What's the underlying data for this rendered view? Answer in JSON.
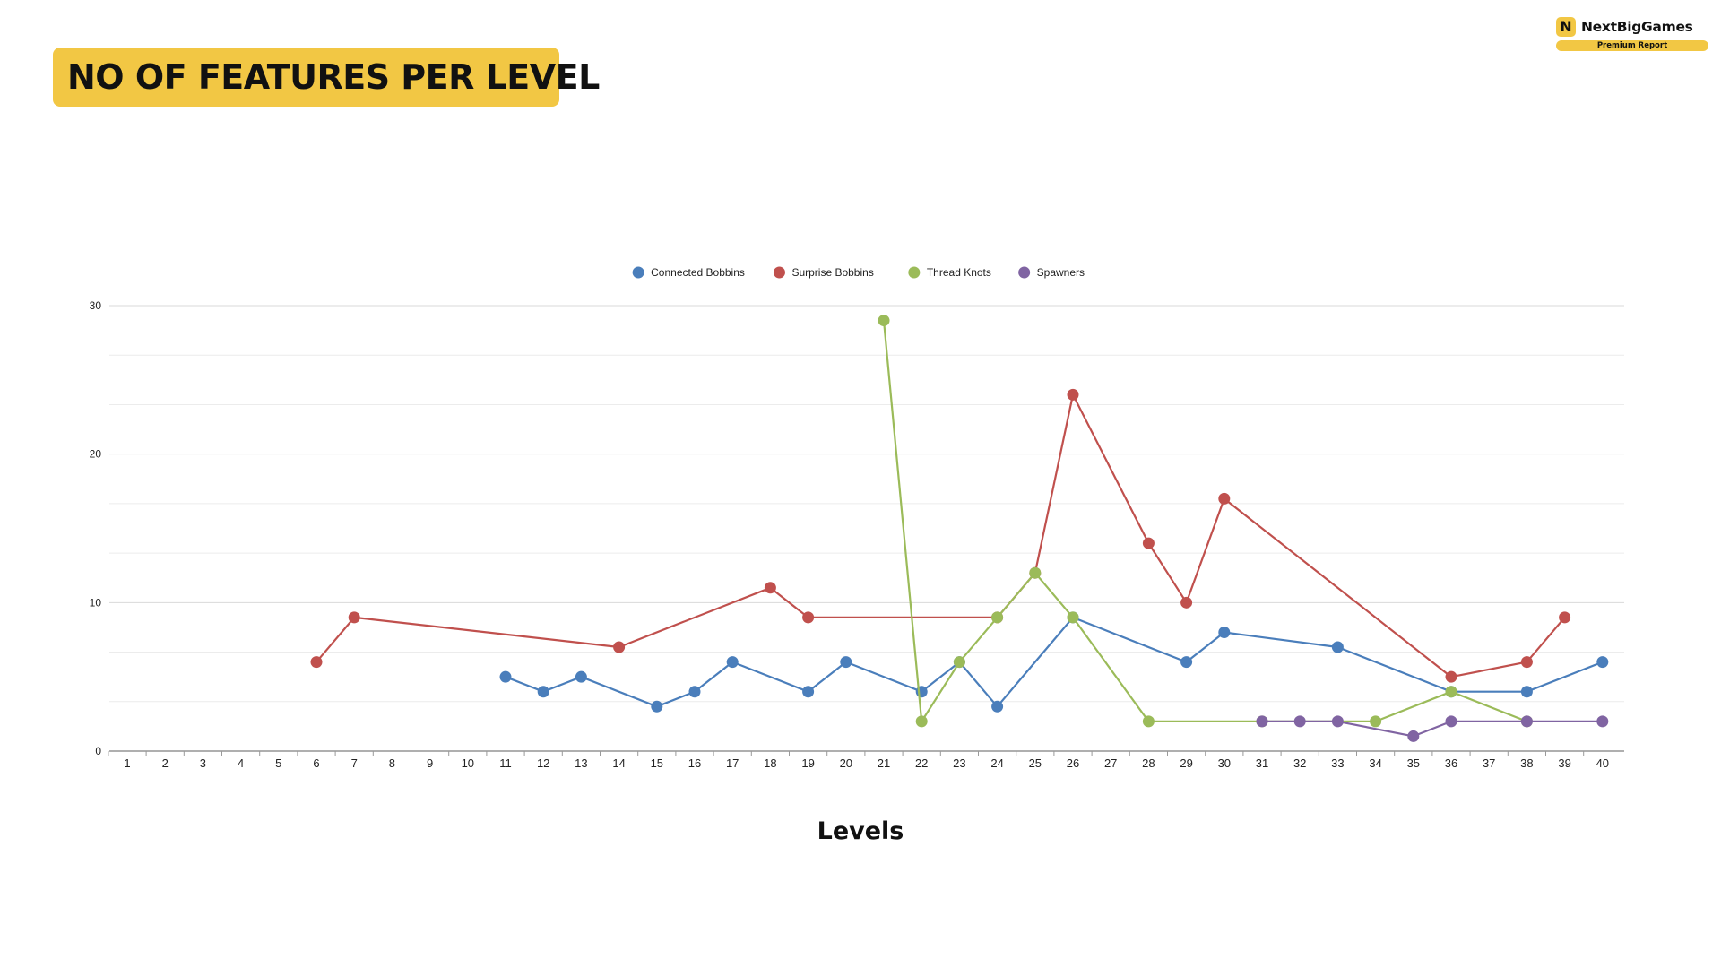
{
  "header": {
    "title": "NO OF FEATURES PER LEVEL"
  },
  "brand": {
    "name": "NextBigGames",
    "tagline": "Premium Report",
    "logo_letter": "N",
    "accent_color": "#f2c744"
  },
  "chart_data": {
    "type": "line",
    "xlabel": "Levels",
    "ylabel": "",
    "ylim": [
      0,
      30
    ],
    "yticks": [
      0,
      10,
      20,
      30
    ],
    "grid": true,
    "legend_position": "top-center",
    "categories": [
      "1",
      "2",
      "3",
      "4",
      "5",
      "6",
      "7",
      "8",
      "9",
      "10",
      "11",
      "12",
      "13",
      "14",
      "15",
      "16",
      "17",
      "18",
      "19",
      "20",
      "21",
      "22",
      "23",
      "24",
      "25",
      "26",
      "27",
      "28",
      "29",
      "30",
      "31",
      "32",
      "33",
      "34",
      "35",
      "36",
      "37",
      "38",
      "39",
      "40"
    ],
    "series": [
      {
        "name": "Connected Bobbins",
        "color": "#4a7ebb",
        "values": [
          null,
          null,
          null,
          null,
          null,
          null,
          null,
          null,
          null,
          null,
          5,
          4,
          5,
          null,
          3,
          4,
          6,
          null,
          4,
          6,
          null,
          4,
          6,
          3,
          null,
          9,
          null,
          null,
          6,
          8,
          null,
          null,
          7,
          null,
          null,
          4,
          null,
          4,
          null,
          6
        ]
      },
      {
        "name": "Surprise Bobbins",
        "color": "#c0504d",
        "values": [
          null,
          null,
          null,
          null,
          null,
          6,
          9,
          null,
          null,
          null,
          null,
          null,
          null,
          7,
          null,
          null,
          null,
          11,
          9,
          null,
          null,
          null,
          null,
          9,
          12,
          24,
          null,
          14,
          10,
          17,
          null,
          null,
          null,
          null,
          null,
          5,
          null,
          6,
          9,
          null
        ]
      },
      {
        "name": "Thread Knots",
        "color": "#9bbb59",
        "values": [
          null,
          null,
          null,
          null,
          null,
          null,
          null,
          null,
          null,
          null,
          null,
          null,
          null,
          null,
          null,
          null,
          null,
          null,
          null,
          null,
          29,
          2,
          6,
          9,
          12,
          9,
          null,
          2,
          null,
          null,
          2,
          null,
          null,
          2,
          null,
          4,
          null,
          2,
          null,
          null
        ]
      },
      {
        "name": "Spawners",
        "color": "#8064a2",
        "values": [
          null,
          null,
          null,
          null,
          null,
          null,
          null,
          null,
          null,
          null,
          null,
          null,
          null,
          null,
          null,
          null,
          null,
          null,
          null,
          null,
          null,
          null,
          null,
          null,
          null,
          null,
          null,
          null,
          null,
          null,
          2,
          2,
          2,
          null,
          1,
          2,
          null,
          2,
          null,
          2
        ]
      }
    ]
  }
}
